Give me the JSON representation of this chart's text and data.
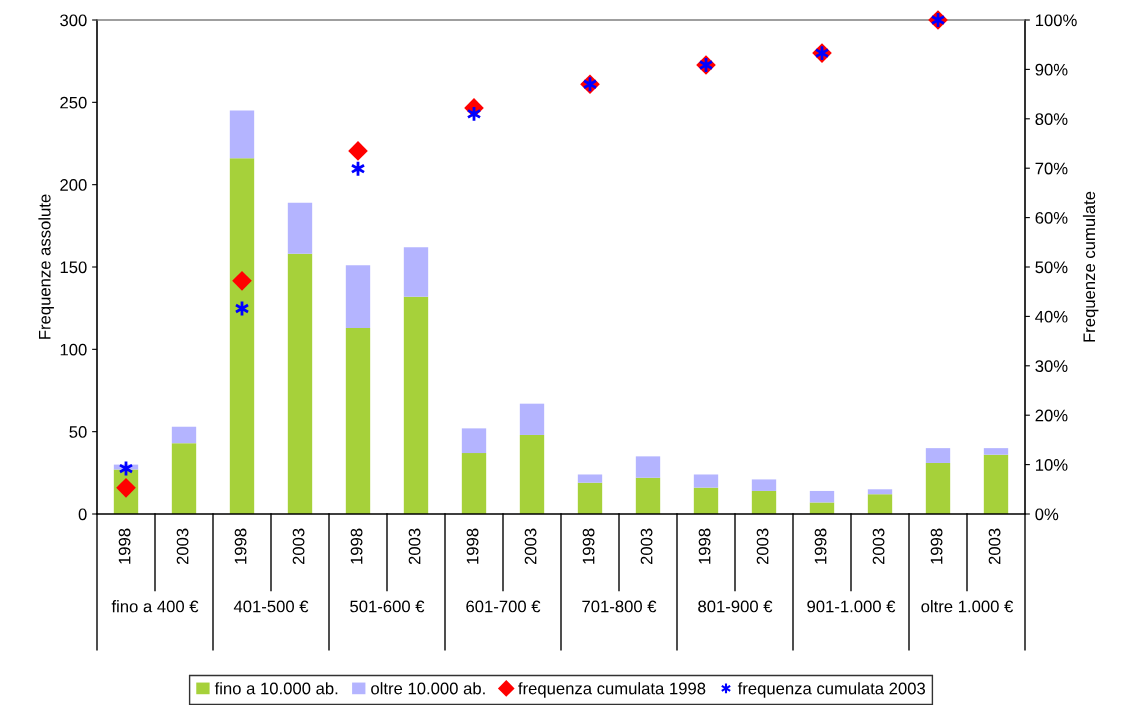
{
  "chart_data": {
    "type": "bar",
    "stacked": true,
    "ylabel": "Frequenze assolute",
    "y2label": "Frequenze cumulate",
    "categories": [
      "1998",
      "2003",
      "1998",
      "2003",
      "1998",
      "2003",
      "1998",
      "2003",
      "1998",
      "2003",
      "1998",
      "2003",
      "1998",
      "2003",
      "1998",
      "2003"
    ],
    "annotations": [
      "fino a 400 €",
      "401-500 €",
      "501-600 €",
      "601-700 €",
      "701-800 €",
      "801-900 €",
      "901-1.000 €",
      "oltre 1.000 €"
    ],
    "ylim": [
      0,
      300
    ],
    "yticks": [
      0,
      50,
      100,
      150,
      200,
      250,
      300
    ],
    "y2lim": [
      0,
      100
    ],
    "y2ticks": [
      {
        "value": 0,
        "label": "0%"
      },
      {
        "value": 10,
        "label": "10%"
      },
      {
        "value": 20,
        "label": "20%"
      },
      {
        "value": 30,
        "label": "30%"
      },
      {
        "value": 40,
        "label": "40%"
      },
      {
        "value": 50,
        "label": "50%"
      },
      {
        "value": 60,
        "label": "60%"
      },
      {
        "value": 70,
        "label": "70%"
      },
      {
        "value": 80,
        "label": "80%"
      },
      {
        "value": 90,
        "label": "90%"
      },
      {
        "value": 100,
        "label": "100%"
      }
    ],
    "legend": "bottom",
    "grid": false,
    "series": [
      {
        "name": "fino a 10.000 ab.",
        "color": "#a6d13a",
        "values": [
          27,
          43,
          216,
          158,
          113,
          132,
          37,
          48,
          19,
          22,
          16,
          14,
          7,
          12,
          31,
          36
        ]
      },
      {
        "name": "oltre 10.000 ab.",
        "color": "#b4b4ff",
        "values": [
          3,
          10,
          29,
          31,
          38,
          30,
          15,
          19,
          5,
          13,
          8,
          7,
          7,
          3,
          9,
          4
        ]
      },
      {
        "name": "frequenza cumulata 1998",
        "type": "scatter",
        "axis": "y2",
        "marker": "diamond",
        "color": "#ff0000",
        "values": [
          5.3,
          null,
          47.2,
          null,
          73.5,
          null,
          82.2,
          null,
          87,
          null,
          90.9,
          null,
          93.3,
          null,
          100,
          null
        ]
      },
      {
        "name": "frequenza cumulata 2003",
        "type": "scatter",
        "axis": "y2",
        "marker": "cross",
        "color": "#0000ff",
        "values": [
          9.2,
          null,
          41.6,
          null,
          69.9,
          null,
          81,
          null,
          87,
          null,
          90.9,
          null,
          93.3,
          null,
          100,
          null
        ]
      }
    ]
  }
}
